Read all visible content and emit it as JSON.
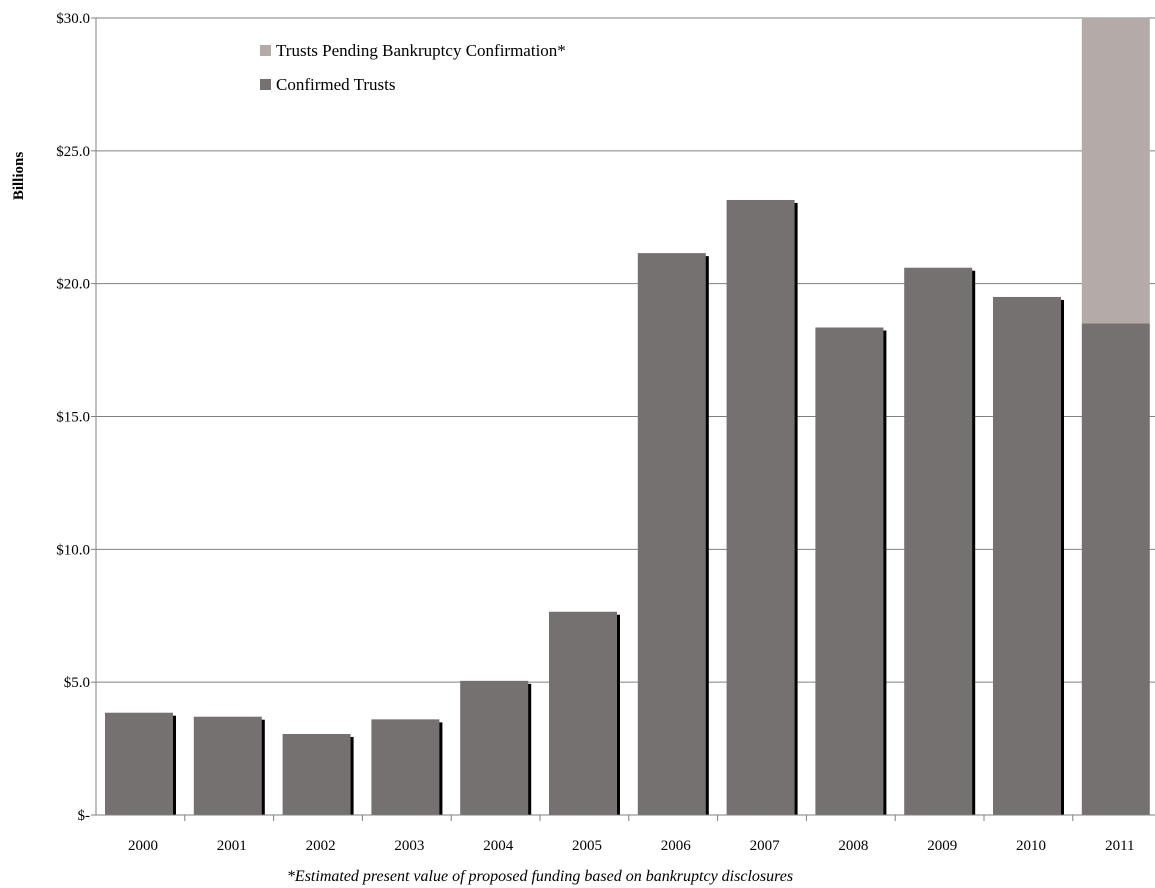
{
  "chart_data": {
    "type": "bar",
    "stacked": true,
    "categories": [
      "2000",
      "2001",
      "2002",
      "2003",
      "2004",
      "2005",
      "2006",
      "2007",
      "2008",
      "2009",
      "2010",
      "2011"
    ],
    "series": [
      {
        "name": "Confirmed Trusts",
        "color": "#757170",
        "values": [
          3.85,
          3.7,
          3.05,
          3.6,
          5.05,
          7.65,
          21.15,
          23.15,
          18.35,
          20.6,
          19.5,
          18.5
        ]
      },
      {
        "name": "Trusts Pending Bankruptcy Confirmation*",
        "color": "#b4aba8",
        "values": [
          0,
          0,
          0,
          0,
          0,
          0,
          0,
          0,
          0,
          0,
          0,
          11.5
        ]
      }
    ],
    "legend_order": [
      1,
      0
    ],
    "legend_position": "top-left",
    "ylabel": "Billions",
    "ylim": [
      0,
      30
    ],
    "yticks": [
      0,
      5,
      10,
      15,
      20,
      25,
      30
    ],
    "ytick_labels": [
      "$-",
      "$5.0",
      "$10.0",
      "$15.0",
      "$20.0",
      "$25.0",
      "$30.0"
    ],
    "grid": "horizontal",
    "footnote": "*Estimated present value of proposed funding based on bankruptcy disclosures"
  }
}
